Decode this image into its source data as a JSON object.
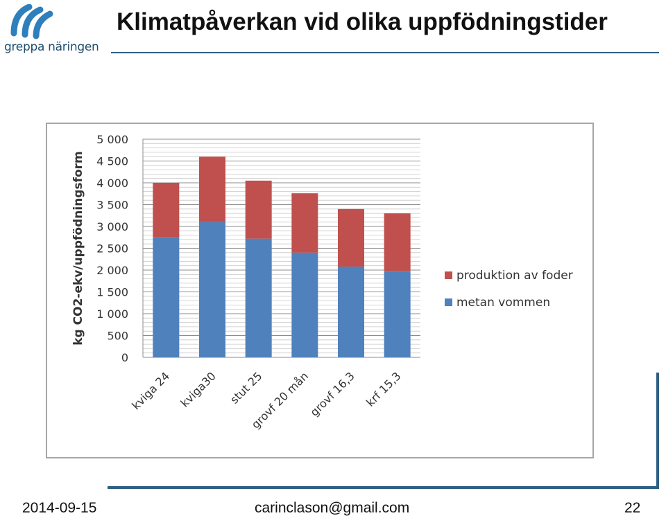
{
  "logo": {
    "text": "greppa näringen",
    "color": "#2f7fbd"
  },
  "title": "Klimatpåverkan vid olika uppfödningstider",
  "footer": {
    "date": "2014-09-15",
    "email": "carinclason@gmail.com",
    "page": "22"
  },
  "chart_data": {
    "type": "bar",
    "stacked": true,
    "categories": [
      "kviga 24",
      "kviga30",
      "stut 25",
      "grovf 20 mån",
      "grovf 16,3",
      "krf 15,3"
    ],
    "series": [
      {
        "name": "metan vommen",
        "color": "#4f81bd",
        "values": [
          2750,
          3100,
          2720,
          2400,
          2080,
          1980
        ]
      },
      {
        "name": "produktion av foder",
        "color": "#c0504d",
        "values": [
          1250,
          1500,
          1330,
          1360,
          1320,
          1320
        ]
      }
    ],
    "legend_order": [
      "produktion av foder",
      "metan vommen"
    ],
    "legend_position": "right",
    "ylabel": "kg CO2-ekv/uppfödningsform",
    "ylim": [
      0,
      5000
    ],
    "ytick_labels": [
      "5 000",
      "4 500",
      "4 000",
      "3 500",
      "3 000",
      "2 500",
      "2 000",
      "1 500",
      "1 000",
      "500",
      "0"
    ],
    "grid": true
  }
}
